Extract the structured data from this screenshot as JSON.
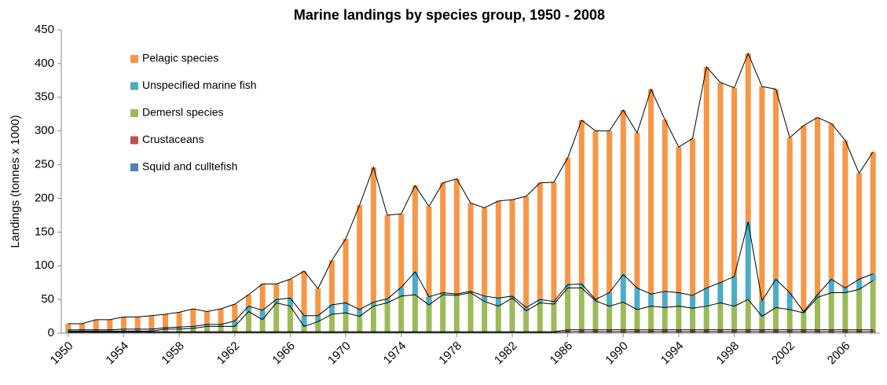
{
  "chart_data": {
    "type": "stacked-bar",
    "title": "Marine landings by species group, 1950 - 2008",
    "y_label": "Landings (tonnes x 1000)",
    "categories": [
      "1950",
      null,
      null,
      null,
      "1954",
      null,
      null,
      null,
      "1958",
      null,
      null,
      null,
      "1962",
      null,
      null,
      null,
      "1966",
      null,
      null,
      null,
      "1970",
      null,
      null,
      null,
      "1974",
      null,
      null,
      null,
      "1978",
      null,
      null,
      null,
      "1982",
      null,
      null,
      null,
      "1986",
      null,
      null,
      null,
      "1990",
      null,
      null,
      null,
      "1994",
      null,
      null,
      null,
      "1998",
      null,
      null,
      null,
      "2002",
      null,
      null,
      null,
      "2006",
      null,
      null
    ],
    "series": [
      {
        "name": "Squid and culltefish",
        "color": "#4f81bd",
        "values": [
          1,
          1,
          1,
          1,
          1,
          1,
          1,
          1,
          1,
          1,
          1,
          1,
          1,
          1,
          1,
          1,
          1,
          1,
          1,
          1,
          1,
          1,
          1,
          1,
          1,
          1,
          1,
          1,
          1,
          1,
          1,
          1,
          1,
          1,
          1,
          1,
          2,
          2,
          2,
          2,
          2,
          2,
          2,
          2,
          2,
          2,
          2,
          2,
          2,
          2,
          2,
          2,
          2,
          2,
          2,
          2,
          2,
          2,
          2
        ]
      },
      {
        "name": "Crustaceans",
        "color": "#c0504d",
        "values": [
          1,
          1,
          1,
          1,
          1,
          1,
          1,
          1,
          1,
          1,
          1,
          1,
          1,
          1,
          1,
          1,
          1,
          1,
          1,
          1,
          1,
          1,
          1,
          1,
          1,
          1,
          1,
          1,
          1,
          1,
          1,
          1,
          1,
          1,
          1,
          1,
          3,
          3,
          3,
          3,
          3,
          3,
          3,
          3,
          3,
          3,
          3,
          3,
          3,
          3,
          3,
          3,
          3,
          3,
          3,
          3,
          3,
          3,
          3
        ]
      },
      {
        "name": "Demersl species",
        "color": "#9bbb59",
        "values": [
          1,
          1,
          1,
          1,
          1,
          1,
          1,
          4,
          4,
          5,
          8,
          8,
          8,
          30,
          18,
          43,
          38,
          8,
          15,
          26,
          28,
          23,
          38,
          43,
          53,
          55,
          40,
          55,
          54,
          58,
          45,
          38,
          50,
          31,
          43,
          41,
          62,
          62,
          43,
          35,
          41,
          30,
          35,
          33,
          35,
          32,
          35,
          40,
          35,
          45,
          20,
          33,
          30,
          25,
          48,
          55,
          55,
          60,
          73
        ]
      },
      {
        "name": "Unspecified marine fish",
        "color": "#4bacc6",
        "values": [
          2,
          2,
          2,
          2,
          3,
          3,
          3,
          2,
          3,
          3,
          3,
          3,
          8,
          8,
          14,
          5,
          12,
          16,
          9,
          14,
          15,
          10,
          6,
          6,
          13,
          34,
          12,
          3,
          2,
          2,
          8,
          12,
          3,
          5,
          5,
          4,
          5,
          6,
          2,
          20,
          41,
          32,
          18,
          24,
          20,
          19,
          27,
          30,
          44,
          115,
          23,
          42,
          25,
          2,
          4,
          20,
          7,
          15,
          10
        ]
      },
      {
        "name": "Pelagic species",
        "color": "#f79646",
        "values": [
          9,
          9,
          15,
          15,
          18,
          18,
          20,
          20,
          22,
          26,
          19,
          23,
          25,
          17,
          39,
          23,
          28,
          66,
          40,
          66,
          95,
          155,
          200,
          124,
          109,
          128,
          134,
          163,
          171,
          131,
          131,
          144,
          143,
          165,
          173,
          177,
          188,
          243,
          250,
          240,
          244,
          230,
          304,
          255,
          216,
          233,
          328,
          297,
          280,
          250,
          318,
          282,
          230,
          276,
          263,
          231,
          219,
          157,
          181
        ]
      }
    ],
    "ylim": [
      0,
      450
    ],
    "yticks": [
      0,
      50,
      100,
      150,
      200,
      250,
      300,
      350,
      400,
      450
    ],
    "legend": "upper-left",
    "series_lines": true
  }
}
